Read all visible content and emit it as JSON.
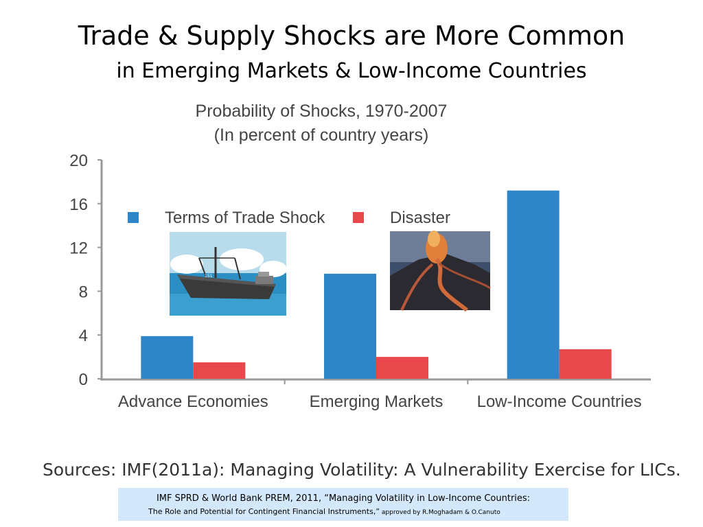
{
  "slide": {
    "title_line1": "Trade & Supply Shocks are More Common",
    "title_line2": "in Emerging Markets & Low-Income Countries",
    "source": "Sources: IMF(2011a): Managing Volatility: A Vulnerability Exercise for LICs.",
    "citation": {
      "line1": "IMF SPRD & World Bank PREM, 2011, “Managing Volatility in Low-Income Countries:",
      "line2": "The Role and Potential for Contingent Financial Instruments,”",
      "line2_small": " approved by R.Moghadam & O.Canuto"
    },
    "images": [
      "cargo-ship-clipart",
      "volcano-lava-photo"
    ]
  },
  "chart_data": {
    "type": "bar",
    "title": "Probability of Shocks, 1970-2007",
    "subtitle": "(In percent of country years)",
    "categories": [
      "Advance Economies",
      "Emerging Markets",
      "Low-Income Countries"
    ],
    "series": [
      {
        "name": "Terms of Trade Shock",
        "color": "#2e86c8",
        "values": [
          3.9,
          9.6,
          17.2
        ]
      },
      {
        "name": "Disaster",
        "color": "#e8474c",
        "values": [
          1.5,
          2.0,
          2.7
        ]
      }
    ],
    "ylim": [
      0,
      20
    ],
    "yticks": [
      0,
      4,
      8,
      12,
      16,
      20
    ],
    "xlabel": "",
    "ylabel": "",
    "grid": false,
    "legend": "top-left"
  }
}
